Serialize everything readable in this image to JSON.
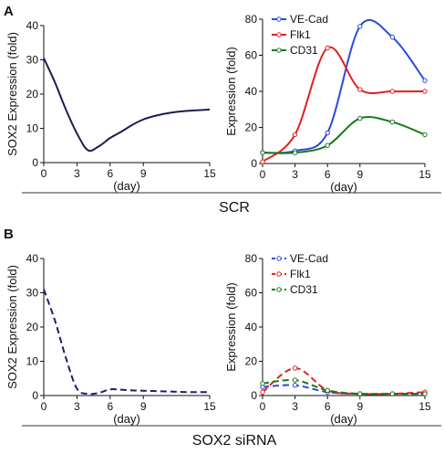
{
  "panel_labels": [
    "A",
    "B"
  ],
  "group_labels": [
    "SCR",
    "SOX2 siRNA"
  ],
  "chart_data": [
    {
      "type": "line",
      "panel": "A",
      "x": [
        0,
        1,
        2,
        3,
        4,
        5,
        6,
        7,
        8,
        9,
        10,
        11,
        12,
        13,
        14,
        15
      ],
      "series": [
        {
          "values": [
            30.5,
            23.5,
            15.5,
            8.5,
            3.6,
            4.8,
            7.2,
            9.0,
            11.0,
            12.6,
            13.6,
            14.3,
            14.8,
            15.1,
            15.3,
            15.5
          ],
          "color": "#1a1f4e",
          "dash": false
        }
      ],
      "xticks": [
        "0",
        "3",
        "6",
        "9",
        "15"
      ],
      "yticks": [
        "0",
        "10",
        "20",
        "30",
        "40"
      ],
      "xlabel": "(day)",
      "ylabel": "SOX2 Expression (fold)",
      "xlim": [
        0,
        15
      ],
      "ylim": [
        0,
        40
      ]
    },
    {
      "type": "line",
      "panel": "A",
      "x": [
        0,
        3,
        6,
        9,
        12,
        15
      ],
      "series": [
        {
          "name": "VE-Cad",
          "values": [
            6,
            7,
            17,
            76,
            70,
            46
          ],
          "color": "#2a4bd7",
          "dash": false
        },
        {
          "name": "Flk1",
          "values": [
            1,
            16,
            64,
            41,
            40,
            40
          ],
          "color": "#e02020",
          "dash": false
        },
        {
          "name": "CD31",
          "values": [
            6,
            6,
            10,
            25,
            23,
            16
          ],
          "color": "#1a7a1a",
          "dash": false
        }
      ],
      "xticks": [
        "0",
        "3",
        "6",
        "9",
        "15"
      ],
      "yticks": [
        "0",
        "20",
        "40",
        "60",
        "80"
      ],
      "xlabel": "(day)",
      "ylabel": "Expression (fold)",
      "xlim": [
        0,
        15
      ],
      "ylim": [
        0,
        80
      ],
      "legend": "top-left"
    },
    {
      "type": "line",
      "panel": "B",
      "x": [
        0,
        1,
        2,
        3,
        4,
        5,
        6,
        7,
        8,
        9,
        10,
        11,
        12,
        13,
        14,
        15
      ],
      "series": [
        {
          "values": [
            31,
            22,
            11,
            2,
            0.5,
            0.8,
            1.8,
            1.7,
            1.5,
            1.4,
            1.3,
            1.2,
            1.1,
            1.0,
            1.0,
            1.0
          ],
          "color": "#1a1f6e",
          "dash": true
        }
      ],
      "xticks": [
        "0",
        "3",
        "6",
        "9",
        "15"
      ],
      "yticks": [
        "0",
        "10",
        "20",
        "30",
        "40"
      ],
      "xlabel": "(day)",
      "ylabel": "SOX2 Expression (fold)",
      "xlim": [
        0,
        15
      ],
      "ylim": [
        0,
        40
      ]
    },
    {
      "type": "line",
      "panel": "B",
      "x": [
        0,
        3,
        6,
        9,
        12,
        15
      ],
      "series": [
        {
          "name": "VE-Cad",
          "values": [
            5,
            6,
            2,
            1,
            1,
            1
          ],
          "color": "#2a4bd7",
          "dash": true
        },
        {
          "name": "Flk1",
          "values": [
            2,
            16,
            3,
            1,
            1,
            2
          ],
          "color": "#e02020",
          "dash": true
        },
        {
          "name": "CD31",
          "values": [
            7,
            9,
            3,
            1,
            1,
            1
          ],
          "color": "#1a7a1a",
          "dash": true
        }
      ],
      "xticks": [
        "0",
        "3",
        "6",
        "9",
        "15"
      ],
      "yticks": [
        "0",
        "20",
        "40",
        "60",
        "80"
      ],
      "xlabel": "(day)",
      "ylabel": "Expression (fold)",
      "xlim": [
        0,
        15
      ],
      "ylim": [
        0,
        80
      ],
      "legend": "top-left"
    }
  ]
}
